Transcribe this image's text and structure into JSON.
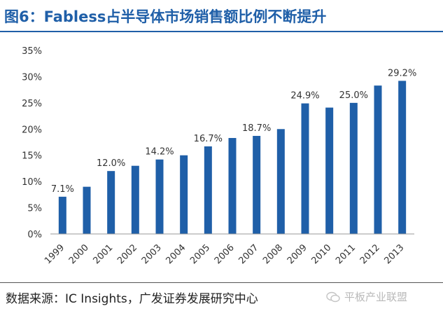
{
  "title": "图6：Fabless占半导体市场销售额比例不断提升",
  "source": "数据来源：IC Insights，广发证券发展研究中心",
  "watermark": "平板产业联盟",
  "colors": {
    "bar": "#1f5fa8",
    "title": "#1f5fa8",
    "axis": "#999999"
  },
  "chart_data": {
    "type": "bar",
    "title": "Fabless占半导体市场销售额比例不断提升",
    "categories": [
      "1999",
      "2000",
      "2001",
      "2002",
      "2003",
      "2004",
      "2005",
      "2006",
      "2007",
      "2008",
      "2009",
      "2010",
      "2011",
      "2012",
      "2013"
    ],
    "values": [
      7.1,
      9.0,
      12.0,
      13.0,
      14.2,
      15.0,
      16.7,
      18.3,
      18.7,
      20.0,
      24.9,
      24.1,
      25.0,
      28.3,
      29.2
    ],
    "data_labels": [
      "7.1%",
      "",
      "12.0%",
      "",
      "14.2%",
      "",
      "16.7%",
      "",
      "18.7%",
      "",
      "24.9%",
      "",
      "25.0%",
      "",
      "29.2%"
    ],
    "yticks": [
      "0%",
      "5%",
      "10%",
      "15%",
      "20%",
      "25%",
      "30%",
      "35%"
    ],
    "ylim": [
      0,
      35
    ],
    "xlabel": "",
    "ylabel": "",
    "grid": false,
    "legend": "none"
  }
}
